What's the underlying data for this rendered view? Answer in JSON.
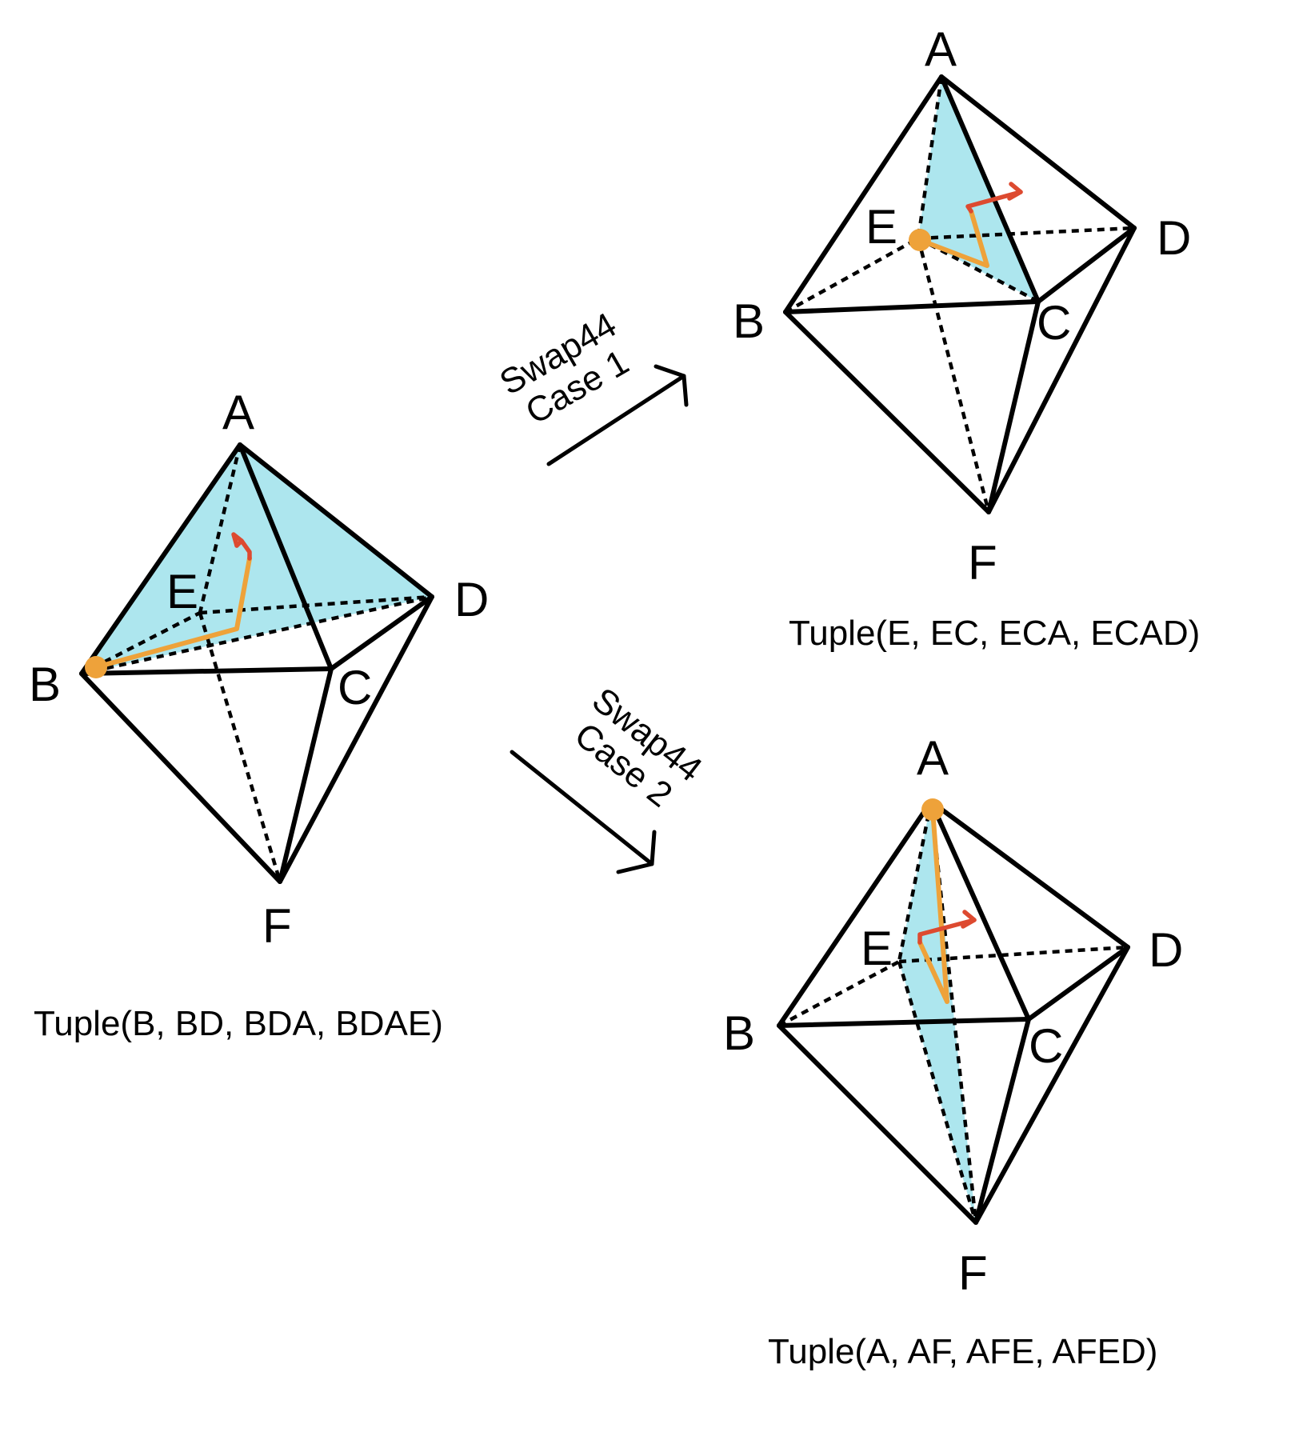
{
  "left": {
    "labels": {
      "A": "A",
      "B": "B",
      "C": "C",
      "D": "D",
      "E": "E",
      "F": "F"
    },
    "tuple": "Tuple(B, BD, BDA, BDAE)"
  },
  "case1": {
    "arrow_label_line1": "Swap44",
    "arrow_label_line2": "Case 1",
    "labels": {
      "A": "A",
      "B": "B",
      "C": "C",
      "D": "D",
      "E": "E",
      "F": "F"
    },
    "tuple": "Tuple(E, EC, ECA, ECAD)"
  },
  "case2": {
    "arrow_label_line1": "Swap44",
    "arrow_label_line2": "Case 2",
    "labels": {
      "A": "A",
      "B": "B",
      "C": "C",
      "D": "D",
      "E": "E",
      "F": "F"
    },
    "tuple": "Tuple(A, AF, AFE, AFED)"
  },
  "colors": {
    "face": "#ade6ee",
    "path": "#eea23a",
    "direction": "#dd4a30",
    "edge": "#000000"
  }
}
